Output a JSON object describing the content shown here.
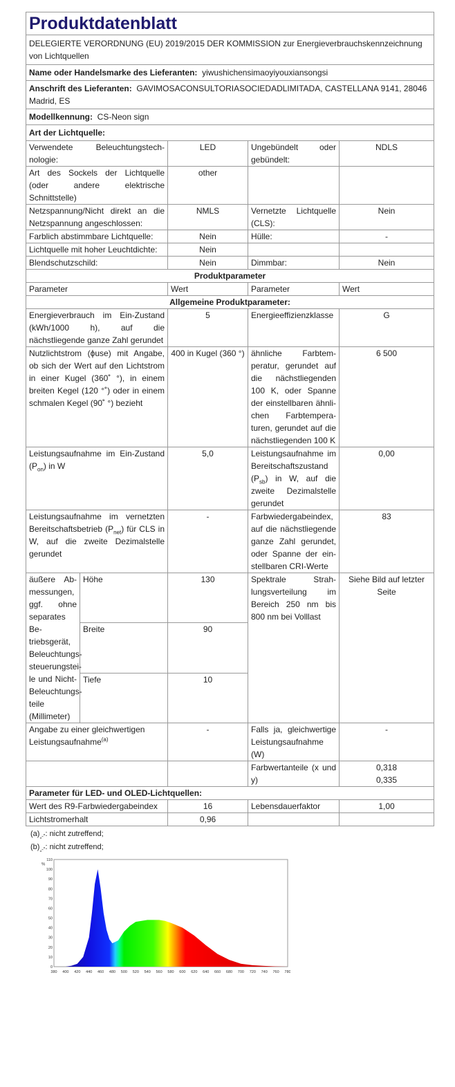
{
  "title": "Produktdatenblatt",
  "regulation": "DELEGIERTE VERORDNUNG (EU) 2019/2015 DER KOMMISSION zur Energieverbrauchskennzeichnung von Lichtquellen",
  "supplier_label": "Name oder Handelsmarke des Lieferanten:",
  "supplier": "yiwushichensimaoyiyouxiansongsi",
  "address_label": "Anschrift des Lieferanten:",
  "address": "GAVIMOSACONSULTORIASOCIEDADLIMITADA, CASTELLANA 9141, 28046 Madrid, ES",
  "model_label": "Modellkennung:",
  "model": "CS-Neon sign",
  "type_label": "Art der Lichtquelle:",
  "type_rows": [
    {
      "l1": "Verwendete Beleuchtungstech­nologie:",
      "v1": "LED",
      "l2": "Ungebündelt oder gebündelt:",
      "v2": "NDLS"
    },
    {
      "l1": "Art des Sockels der Lichtquelle (oder andere elektrische Schnittstelle)",
      "v1": "other",
      "l2": "",
      "v2": ""
    },
    {
      "l1": "Netzspannung/Nicht direkt an die Netzspannung angeschlos­sen:",
      "v1": "NMLS",
      "l2": "Vernetzte Lichtquel­le (CLS):",
      "v2": "Nein"
    },
    {
      "l1": "Farblich abstimmbare Licht­quelle:",
      "v1": "Nein",
      "l2": "Hülle:",
      "v2": "-"
    },
    {
      "l1": "Lichtquelle mit hoher Leucht­dichte:",
      "v1": "Nein",
      "l2": "",
      "v2": ""
    },
    {
      "l1": "Blendschutzschild:",
      "v1": "Nein",
      "l2": "Dimmbar:",
      "v2": "Nein"
    }
  ],
  "product_params_header": "Produktparameter",
  "col_headers": [
    "Parameter",
    "Wert",
    "Parameter",
    "Wert"
  ],
  "general_header": "Allgemeine Produktparameter:",
  "general": {
    "energy_l": "Energieverbrauch im Ein-Zu­stand (kWh/1000 h), auf die nächstliegende ganze Zahl ge­rundet",
    "energy_v": "5",
    "class_l": "Energieeffizienzklas­se",
    "class_v": "G",
    "flux_l": "Nutzlichtstrom (ϕuse) mit An­gabe, ob sich der Wert auf den Lichtstrom in einer Kugel (360˚ °), in einem breiten Kegel (120 °˚) oder in einem schmalen Kegel (90˚ °) bezieht",
    "flux_v": "400 in Ku­gel (360 °)",
    "cct_l": "ähnliche Farbtem­peratur, gerundet auf die nächst­liegenden 100 K, oder Spanne der einstellbaren ähnli­chen Farbtempera­turen, gerundet auf die nächstliegenden 100 K",
    "cct_v": "6 500",
    "pon_l1": "Leistungsaufnahme im Ein-Zu­stand (P",
    "pon_sub": "on",
    "pon_l2": ") in W",
    "pon_v": "5,0",
    "psb_l1": "Leistungsaufnahme im Bereitschafts­zustand (P",
    "psb_sub": "sb",
    "psb_l2": ") in W, auf die zweite Dezimal­stelle gerundet",
    "psb_v": "0,00",
    "pnet_l1": "Leistungsaufnahme im vernetz­ten Bereitschaftsbetrieb (P",
    "pnet_sub": "net",
    "pnet_l2": ") für CLS in W, auf die zweite De­zimalstelle gerundet",
    "pnet_v": "-",
    "cri_l": "Farbwiedergabein­dex, auf die nächstliegende gan­ze Zahl gerundet, oder Spanne der ein­stellbaren CRI-Wer­te",
    "cri_v": "83",
    "dim_l": "äußere Ab­messungen, ggf. ohne se­parates Be­triebsgerät, Beleuchtungs­steuerungstei­le und Nicht-Beleuchtungs­teile (Millime­ter)",
    "height_l": "Höhe",
    "height_v": "130",
    "width_l": "Breite",
    "width_v": "90",
    "depth_l": "Tiefe",
    "depth_v": "10",
    "spd_l": "Spektrale Strah­lungsverteilung im Bereich 250 nm bis 800 nm bei Volllast",
    "spd_v": "Siehe Bild auf letzter Seite",
    "equiv_l": "Angabe zu einer gleichwertigen Leistungsaufnahme",
    "equiv_sup": "(a)",
    "equiv_v": "-",
    "ifyes_l": "Falls ja, gleichwerti­ge Leistungsaufnah­me (W)",
    "ifyes_v": "-",
    "chroma_l": "Farbwertanteile (x und y)",
    "chroma_x": "0,318",
    "chroma_y": "0,335"
  },
  "led_header": "Parameter für LED- und OLED-Lichtquellen:",
  "led": {
    "r9_l": "Wert des R9-Farbwiedergabein­dex",
    "r9_v": "16",
    "life_l": "Lebensdauerfaktor",
    "life_v": "1,00",
    "maint_l": "Lichtstromerhalt",
    "maint_v": "0,96"
  },
  "notes": [
    {
      "mark": "(a)",
      "sub": "„-“",
      "text": ": nicht zutreffend;"
    },
    {
      "mark": "(b)",
      "sub": "„-“",
      "text": ": nicht zutreffend;"
    }
  ],
  "chart_data": {
    "type": "area",
    "ylabel": "%",
    "xlim": [
      380,
      780
    ],
    "ylim": [
      0,
      110
    ],
    "x_ticks": [
      "380",
      "400",
      "420",
      "440",
      "460",
      "480",
      "500",
      "520",
      "540",
      "560",
      "580",
      "600",
      "620",
      "640",
      "660",
      "680",
      "700",
      "720",
      "740",
      "760",
      "780"
    ],
    "y_ticks": [
      "0",
      "10",
      "20",
      "30",
      "40",
      "50",
      "60",
      "70",
      "80",
      "90",
      "100",
      "110"
    ],
    "x": [
      380,
      400,
      410,
      420,
      430,
      440,
      445,
      450,
      455,
      460,
      465,
      470,
      475,
      480,
      490,
      500,
      510,
      520,
      540,
      560,
      570,
      580,
      600,
      620,
      640,
      660,
      680,
      700,
      720,
      740,
      760,
      780
    ],
    "y": [
      0,
      0,
      1,
      3,
      10,
      30,
      55,
      85,
      100,
      80,
      55,
      38,
      28,
      24,
      27,
      36,
      42,
      46,
      48,
      48,
      47,
      45,
      40,
      32,
      22,
      13,
      7,
      3,
      1.5,
      0.8,
      0.3,
      0
    ]
  }
}
